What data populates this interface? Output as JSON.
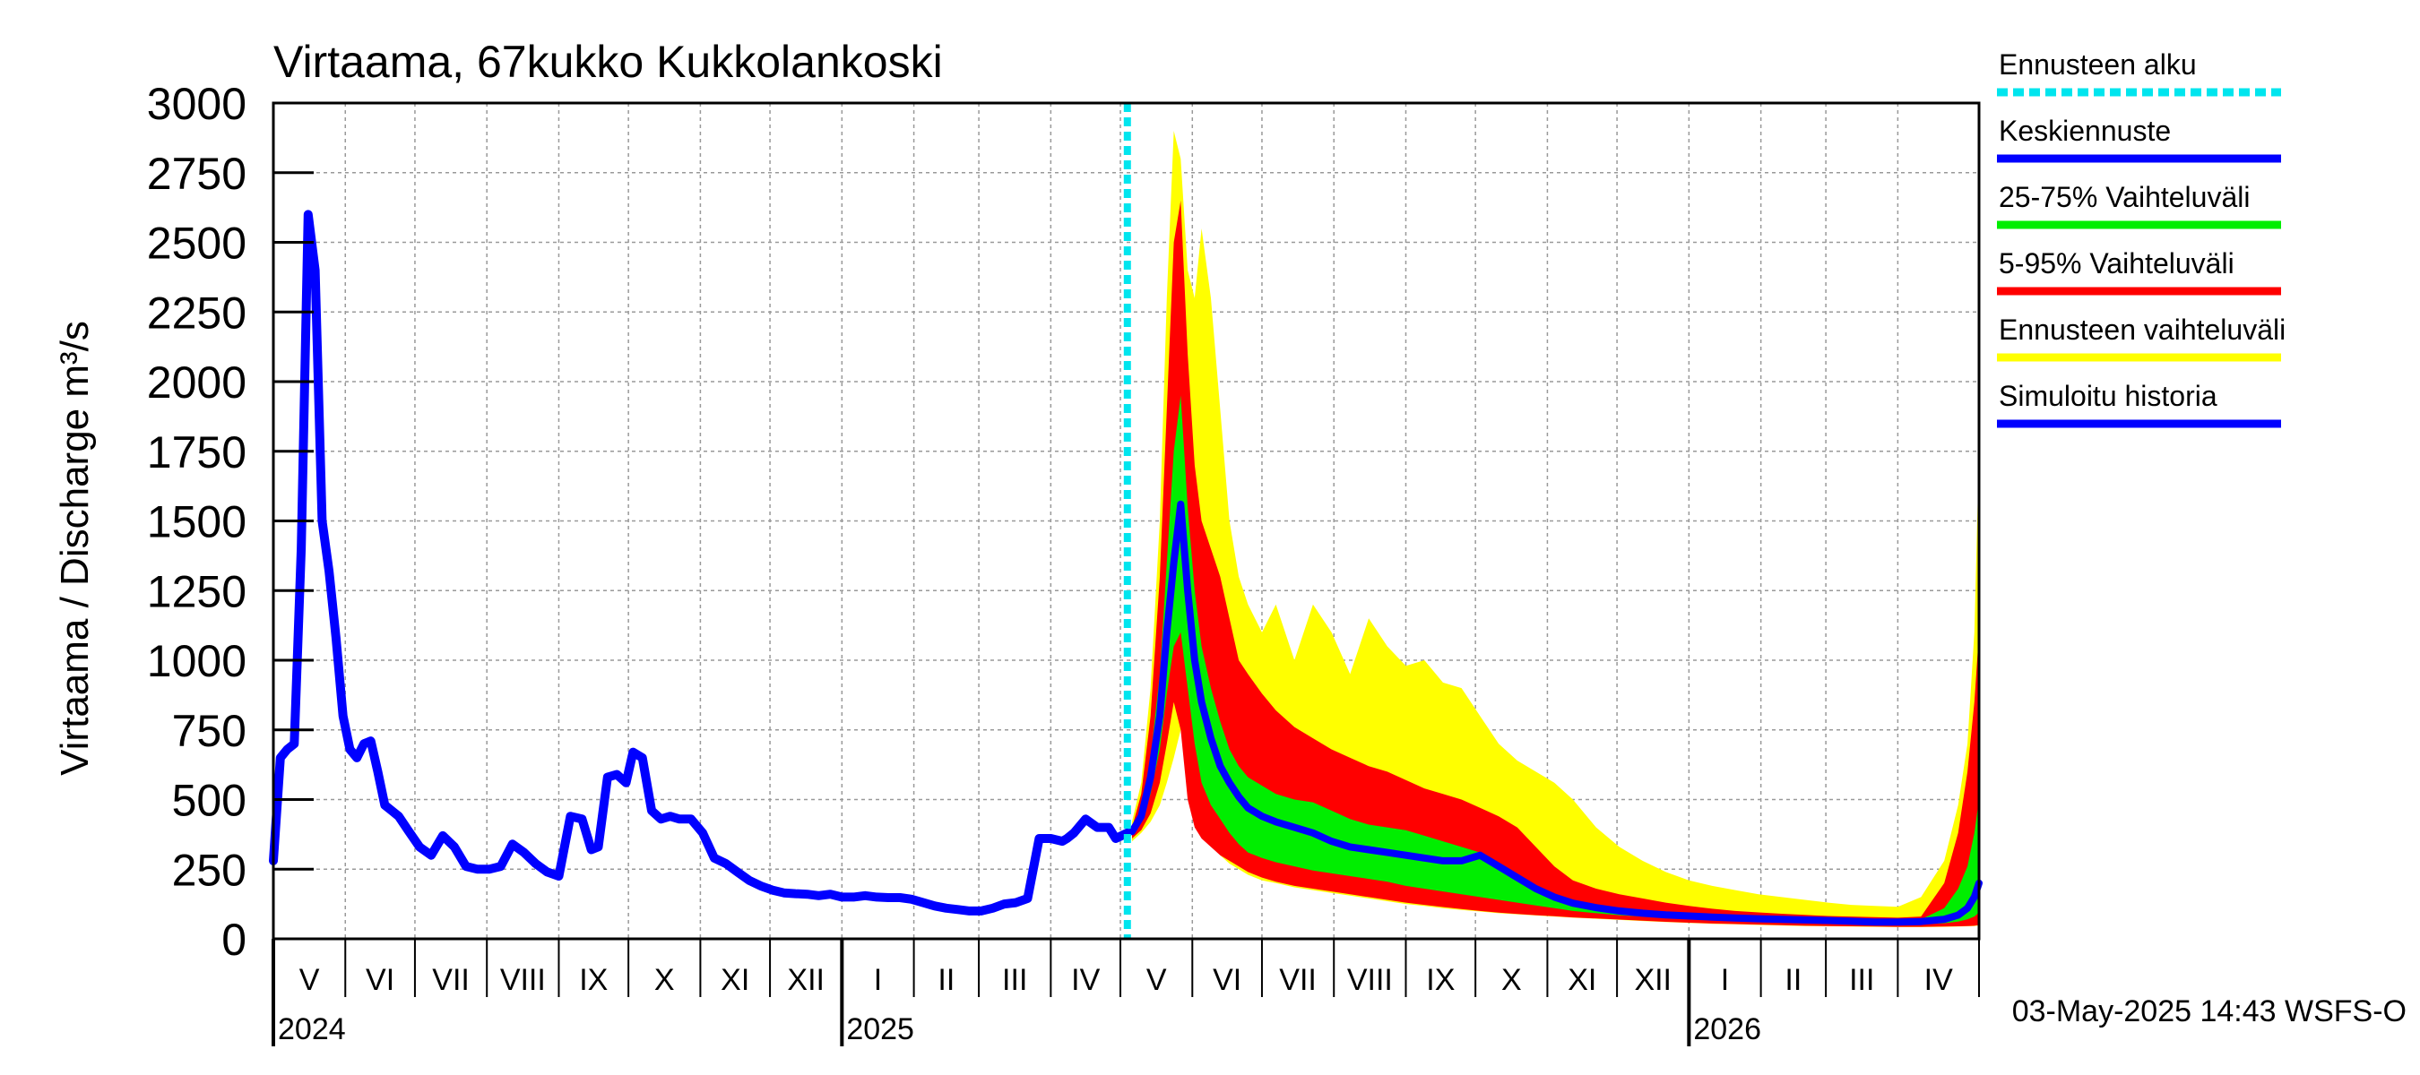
{
  "chart_data": {
    "type": "area",
    "title": "Virtaama, 67kukko Kukkolankoski",
    "ylabel": "Virtaama / Discharge   m³/s",
    "ylim": [
      0,
      3000
    ],
    "yticks": [
      0,
      250,
      500,
      750,
      1000,
      1250,
      1500,
      1750,
      2000,
      2250,
      2500,
      2750,
      3000
    ],
    "x_range_days": [
      0,
      735
    ],
    "months": [
      {
        "label": "V",
        "start": 0
      },
      {
        "label": "VI",
        "start": 31
      },
      {
        "label": "VII",
        "start": 61
      },
      {
        "label": "VIII",
        "start": 92
      },
      {
        "label": "IX",
        "start": 123
      },
      {
        "label": "X",
        "start": 153
      },
      {
        "label": "XI",
        "start": 184
      },
      {
        "label": "XII",
        "start": 214
      },
      {
        "label": "I",
        "start": 245
      },
      {
        "label": "II",
        "start": 276
      },
      {
        "label": "III",
        "start": 304
      },
      {
        "label": "IV",
        "start": 335
      },
      {
        "label": "V",
        "start": 365
      },
      {
        "label": "VI",
        "start": 396
      },
      {
        "label": "VII",
        "start": 426
      },
      {
        "label": "VIII",
        "start": 457
      },
      {
        "label": "IX",
        "start": 488
      },
      {
        "label": "X",
        "start": 518
      },
      {
        "label": "XI",
        "start": 549
      },
      {
        "label": "XII",
        "start": 579
      },
      {
        "label": "I",
        "start": 610
      },
      {
        "label": "II",
        "start": 641
      },
      {
        "label": "III",
        "start": 669
      },
      {
        "label": "IV",
        "start": 700
      }
    ],
    "years": [
      {
        "label": "2024",
        "day": 0
      },
      {
        "label": "2025",
        "day": 245
      },
      {
        "label": "2026",
        "day": 610
      }
    ],
    "forecast_start_day": 368,
    "history": {
      "name": "Simuloitu historia",
      "x": [
        0,
        3,
        6,
        9,
        12,
        15,
        18,
        21,
        24,
        27,
        30,
        33,
        36,
        39,
        42,
        45,
        48,
        51,
        54,
        58,
        63,
        68,
        73,
        78,
        83,
        88,
        93,
        98,
        103,
        108,
        113,
        118,
        123,
        128,
        133,
        137,
        140,
        144,
        148,
        152,
        155,
        159,
        163,
        167,
        171,
        175,
        180,
        185,
        190,
        195,
        200,
        205,
        210,
        215,
        220,
        225,
        230,
        235,
        240,
        245,
        250,
        255,
        260,
        265,
        270,
        275,
        280,
        285,
        290,
        295,
        300,
        305,
        310,
        315,
        320,
        325,
        330,
        335,
        340,
        342,
        345,
        350,
        355,
        360,
        363,
        368
      ],
      "values": [
        280,
        650,
        680,
        700,
        1400,
        2600,
        2400,
        1500,
        1320,
        1080,
        800,
        680,
        650,
        700,
        710,
        600,
        480,
        460,
        440,
        390,
        330,
        300,
        370,
        330,
        260,
        250,
        250,
        260,
        340,
        310,
        270,
        240,
        225,
        440,
        430,
        320,
        330,
        580,
        590,
        560,
        670,
        650,
        460,
        430,
        440,
        430,
        430,
        380,
        290,
        270,
        240,
        210,
        190,
        175,
        165,
        162,
        160,
        155,
        160,
        150,
        150,
        155,
        150,
        148,
        148,
        142,
        130,
        118,
        110,
        105,
        100,
        100,
        110,
        125,
        130,
        145,
        360,
        360,
        350,
        360,
        380,
        430,
        400,
        400,
        360,
        380
      ]
    },
    "forecast": {
      "x": [
        370,
        374,
        378,
        382,
        385,
        388,
        391,
        394,
        397,
        400,
        404,
        408,
        412,
        416,
        420,
        426,
        432,
        440,
        448,
        456,
        464,
        472,
        480,
        488,
        496,
        504,
        512,
        520,
        528,
        536,
        544,
        552,
        560,
        570,
        580,
        590,
        600,
        610,
        620,
        630,
        640,
        650,
        660,
        670,
        680,
        690,
        700,
        710,
        720,
        726,
        730,
        733,
        735
      ],
      "series": [
        {
          "name": "Ennusteen vaihteluväli (min)",
          "values": [
            350,
            380,
            420,
            480,
            560,
            650,
            750,
            600,
            450,
            380,
            340,
            300,
            270,
            250,
            230,
            210,
            200,
            185,
            175,
            165,
            155,
            145,
            135,
            125,
            118,
            110,
            104,
            98,
            92,
            88,
            84,
            80,
            76,
            72,
            68,
            64,
            60,
            57,
            54,
            52,
            50,
            48,
            46,
            45,
            44,
            43,
            42,
            42,
            43,
            44,
            45,
            46,
            48
          ]
        },
        {
          "name": "Ennusteen vaihteluväli (max)",
          "values": [
            420,
            560,
            900,
            1500,
            2300,
            2900,
            2800,
            2400,
            2300,
            2550,
            2300,
            1900,
            1500,
            1300,
            1200,
            1100,
            1200,
            1000,
            1200,
            1100,
            950,
            1150,
            1050,
            980,
            1000,
            920,
            900,
            800,
            700,
            640,
            600,
            560,
            500,
            400,
            330,
            280,
            240,
            210,
            190,
            175,
            160,
            150,
            140,
            130,
            122,
            118,
            115,
            150,
            280,
            480,
            700,
            1100,
            1750
          ]
        },
        {
          "name": "5-95% Vaihteluväli (low)",
          "values": [
            360,
            390,
            450,
            560,
            700,
            850,
            750,
            500,
            400,
            360,
            330,
            300,
            280,
            260,
            240,
            220,
            205,
            190,
            180,
            170,
            160,
            150,
            140,
            130,
            122,
            114,
            107,
            100,
            94,
            89,
            85,
            81,
            77,
            73,
            69,
            65,
            61,
            58,
            55,
            53,
            51,
            49,
            47,
            46,
            45,
            44,
            43,
            43,
            44,
            45,
            46,
            47,
            50
          ]
        },
        {
          "name": "5-95% Vaihteluväli (high)",
          "values": [
            400,
            520,
            800,
            1300,
            1900,
            2500,
            2650,
            2100,
            1700,
            1500,
            1400,
            1300,
            1150,
            1000,
            950,
            880,
            820,
            760,
            720,
            680,
            650,
            620,
            600,
            570,
            540,
            520,
            500,
            470,
            440,
            400,
            330,
            260,
            210,
            180,
            160,
            145,
            130,
            118,
            108,
            100,
            95,
            90,
            86,
            82,
            80,
            78,
            76,
            80,
            200,
            380,
            600,
            850,
            1100
          ]
        },
        {
          "name": "25-75% Vaihteluväli (low)",
          "values": [
            380,
            420,
            520,
            680,
            880,
            1050,
            1100,
            900,
            700,
            560,
            480,
            430,
            380,
            340,
            310,
            290,
            275,
            260,
            245,
            235,
            225,
            215,
            205,
            190,
            180,
            170,
            160,
            150,
            140,
            130,
            120,
            110,
            100,
            92,
            85,
            80,
            75,
            71,
            68,
            65,
            62,
            60,
            58,
            56,
            54,
            53,
            52,
            52,
            56,
            62,
            70,
            80,
            95
          ]
        },
        {
          "name": "25-75% Vaihteluväli (high)",
          "values": [
            390,
            470,
            650,
            950,
            1350,
            1750,
            1950,
            1550,
            1250,
            1050,
            900,
            780,
            680,
            620,
            580,
            550,
            520,
            500,
            490,
            460,
            430,
            410,
            400,
            390,
            370,
            350,
            330,
            310,
            260,
            220,
            180,
            150,
            130,
            118,
            108,
            100,
            95,
            90,
            86,
            82,
            78,
            75,
            72,
            70,
            68,
            66,
            64,
            70,
            110,
            180,
            260,
            380,
            500
          ]
        },
        {
          "name": "Keskiennuste",
          "values": [
            385,
            440,
            580,
            800,
            1100,
            1350,
            1560,
            1250,
            1000,
            850,
            720,
            620,
            560,
            510,
            470,
            440,
            420,
            400,
            380,
            350,
            330,
            320,
            310,
            300,
            290,
            280,
            280,
            300,
            260,
            220,
            180,
            150,
            128,
            112,
            100,
            92,
            86,
            82,
            78,
            75,
            72,
            70,
            68,
            66,
            63,
            60,
            60,
            62,
            70,
            85,
            110,
            150,
            200
          ]
        }
      ]
    },
    "legend": [
      {
        "label": "Ennusteen alku",
        "color": "#00e5ee",
        "style": "dashed"
      },
      {
        "label": "Keskiennuste",
        "color": "#0000ff",
        "style": "solid"
      },
      {
        "label": "25-75% Vaihteluväli",
        "color": "#00ee00",
        "style": "solid"
      },
      {
        "label": "5-95% Vaihteluväli",
        "color": "#ff0000",
        "style": "solid"
      },
      {
        "label": "Ennusteen vaihteluväli",
        "color": "#ffff00",
        "style": "solid"
      },
      {
        "label": "Simuloitu historia",
        "color": "#0000ff",
        "style": "solid"
      }
    ],
    "colors": {
      "yellow": "#ffff00",
      "red": "#ff0000",
      "green": "#00ee00",
      "blue": "#0000ff",
      "cyan": "#00e5ee",
      "grid": "#999999"
    }
  },
  "footer": "03-May-2025 14:43 WSFS-O"
}
